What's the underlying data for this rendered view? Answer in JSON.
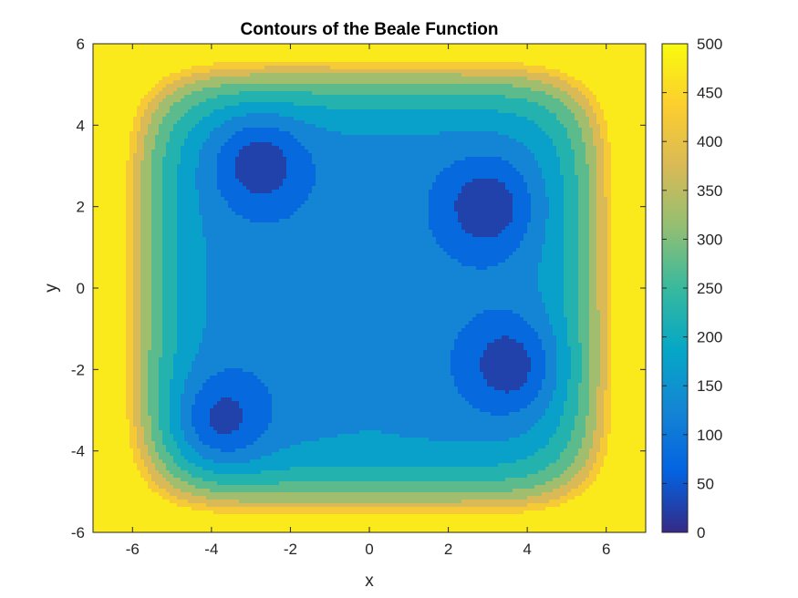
{
  "chart_data": {
    "type": "contour",
    "title": "Contours of the Beale Function",
    "xlabel": "x",
    "ylabel": "y",
    "xlim": [
      -7,
      7
    ],
    "ylim": [
      -6,
      6
    ],
    "xticks": [
      -6,
      -4,
      -2,
      0,
      2,
      4,
      6
    ],
    "yticks": [
      -6,
      -4,
      -2,
      0,
      2,
      4,
      6
    ],
    "colorbar": {
      "ticks": [
        0,
        50,
        100,
        150,
        200,
        250,
        300,
        350,
        400,
        450,
        500
      ],
      "range": [
        0,
        500
      ],
      "colormap": "parula"
    },
    "filled_levels": [
      0,
      50,
      100,
      150,
      200,
      250,
      300,
      350,
      400,
      450,
      500
    ],
    "minima_regions": [
      {
        "x": -2.8,
        "y": 3.1
      },
      {
        "x": 3.0,
        "y": 2.0
      },
      {
        "x": 3.6,
        "y": -1.9
      },
      {
        "x": -3.8,
        "y": -3.3
      }
    ],
    "grid": false,
    "line_color": "#000000"
  }
}
